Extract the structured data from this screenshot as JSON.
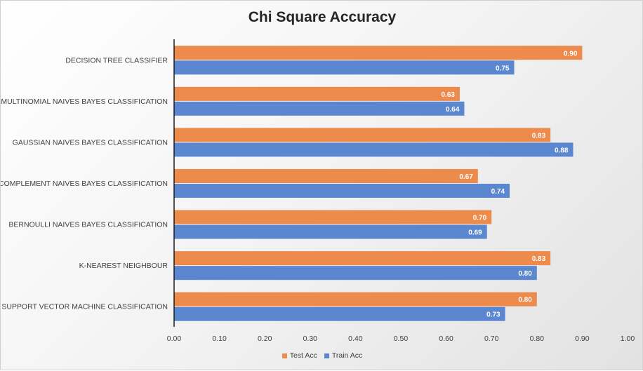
{
  "chart_data": {
    "type": "bar",
    "orientation": "horizontal",
    "title": "Chi Square Accuracy",
    "categories": [
      "DECISION TREE CLASSIFIER",
      "MULTINOMIAL NAIVES BAYES CLASSIFICATION",
      "GAUSSIAN NAIVES BAYES CLASSIFICATION",
      "COMPLEMENT NAIVES BAYES CLASSIFICATION",
      "BERNOULLI NAIVES BAYES CLASSIFICATION",
      "K-NEAREST NEIGHBOUR",
      "SUPPORT VECTOR MACHINE CLASSIFICATION"
    ],
    "series": [
      {
        "name": "Test Acc",
        "color": "#ED8B4C",
        "values": [
          0.9,
          0.63,
          0.83,
          0.67,
          0.7,
          0.83,
          0.8
        ]
      },
      {
        "name": "Train Acc",
        "color": "#5B86D0",
        "values": [
          0.75,
          0.64,
          0.88,
          0.74,
          0.69,
          0.8,
          0.73
        ]
      }
    ],
    "xlim": [
      0,
      1.0
    ],
    "xticks": [
      "0.00",
      "0.10",
      "0.20",
      "0.30",
      "0.40",
      "0.50",
      "0.60",
      "0.70",
      "0.80",
      "0.90",
      "1.00"
    ],
    "grid": false,
    "legend_position": "bottom"
  }
}
